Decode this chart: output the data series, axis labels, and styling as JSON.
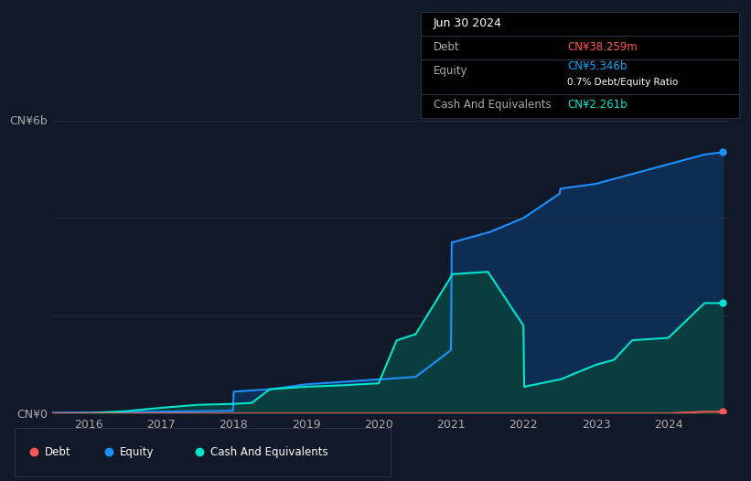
{
  "background_color": "#111827",
  "plot_bg_color": "#111827",
  "grid_color": "#2a3040",
  "tooltip": {
    "date": "Jun 30 2024",
    "debt_label": "Debt",
    "debt_value": "CN¥38.259m",
    "debt_color": "#ff5555",
    "equity_label": "Equity",
    "equity_value": "CN¥5.346b",
    "equity_color": "#00aaff",
    "ratio_text": "0.7% Debt/Equity Ratio",
    "cash_label": "Cash And Equivalents",
    "cash_value": "CN¥2.261b",
    "cash_color": "#00e5cc",
    "bg": "#000000",
    "border": "#2a3040"
  },
  "equity_x": [
    2015.5,
    2016.0,
    2016.5,
    2017.0,
    2017.5,
    2017.99,
    2018.0,
    2018.5,
    2018.51,
    2019.0,
    2019.5,
    2019.99,
    2020.0,
    2020.5,
    2020.51,
    2021.0,
    2021.01,
    2021.5,
    2021.51,
    2022.0,
    2022.5,
    2022.51,
    2023.0,
    2023.5,
    2024.0,
    2024.5,
    2024.75
  ],
  "equity_y": [
    20000000.0,
    25000000.0,
    30000000.0,
    40000000.0,
    50000000.0,
    60000000.0,
    450000000.0,
    500000000.0,
    500000000.0,
    600000000.0,
    650000000.0,
    700000000.0,
    700000000.0,
    750000000.0,
    750000000.0,
    1300000000.0,
    3500000000.0,
    3700000000.0,
    3700000000.0,
    4000000000.0,
    4500000000.0,
    4600000000.0,
    4700000000.0,
    4900000000.0,
    5100000000.0,
    5300000000.0,
    5346000000.0
  ],
  "cash_x": [
    2015.5,
    2016.0,
    2016.5,
    2017.0,
    2017.5,
    2017.99,
    2018.0,
    2018.25,
    2018.5,
    2018.51,
    2019.0,
    2019.5,
    2019.99,
    2020.0,
    2020.25,
    2020.5,
    2020.51,
    2021.0,
    2021.01,
    2021.5,
    2021.51,
    2022.0,
    2022.01,
    2022.5,
    2022.51,
    2023.0,
    2023.25,
    2023.5,
    2024.0,
    2024.5,
    2024.75
  ],
  "cash_y": [
    5000000.0,
    10000000.0,
    50000000.0,
    120000000.0,
    180000000.0,
    200000000.0,
    200000000.0,
    220000000.0,
    500000000.0,
    500000000.0,
    550000000.0,
    580000000.0,
    620000000.0,
    620000000.0,
    1500000000.0,
    1620000000.0,
    1620000000.0,
    2800000000.0,
    2850000000.0,
    2900000000.0,
    2900000000.0,
    1800000000.0,
    550000000.0,
    700000000.0,
    700000000.0,
    1000000000.0,
    1100000000.0,
    1500000000.0,
    1550000000.0,
    2261000000.0,
    2261000000.0
  ],
  "debt_x": [
    2015.5,
    2016.0,
    2017.0,
    2018.0,
    2019.0,
    2020.0,
    2021.0,
    2021.5,
    2021.99,
    2022.0,
    2022.5,
    2022.51,
    2023.0,
    2024.0,
    2024.5,
    2024.75
  ],
  "debt_y": [
    5000000.0,
    5000000.0,
    5000000.0,
    5000000.0,
    5000000.0,
    5000000.0,
    5000000.0,
    5000000.0,
    5000000.0,
    5000000.0,
    5000000.0,
    5000000.0,
    5000000.0,
    5000000.0,
    38259000.0,
    38259000.0
  ],
  "equity_color": "#1e90ff",
  "cash_color": "#00e5cc",
  "debt_color": "#ff5555",
  "legend_items": [
    {
      "label": "Debt",
      "color": "#ff5555"
    },
    {
      "label": "Equity",
      "color": "#1e90ff"
    },
    {
      "label": "Cash And Equivalents",
      "color": "#00e5cc"
    }
  ],
  "xticks": [
    2016,
    2017,
    2018,
    2019,
    2020,
    2021,
    2022,
    2023,
    2024
  ],
  "xlim": [
    2015.5,
    2024.83
  ],
  "ylim": [
    0,
    6000000000.0
  ],
  "ytick_vals": [
    0,
    2000000000.0,
    4000000000.0,
    6000000000.0
  ],
  "ytick_labels": [
    "CN¥0",
    "",
    "",
    "CN¥6b"
  ]
}
